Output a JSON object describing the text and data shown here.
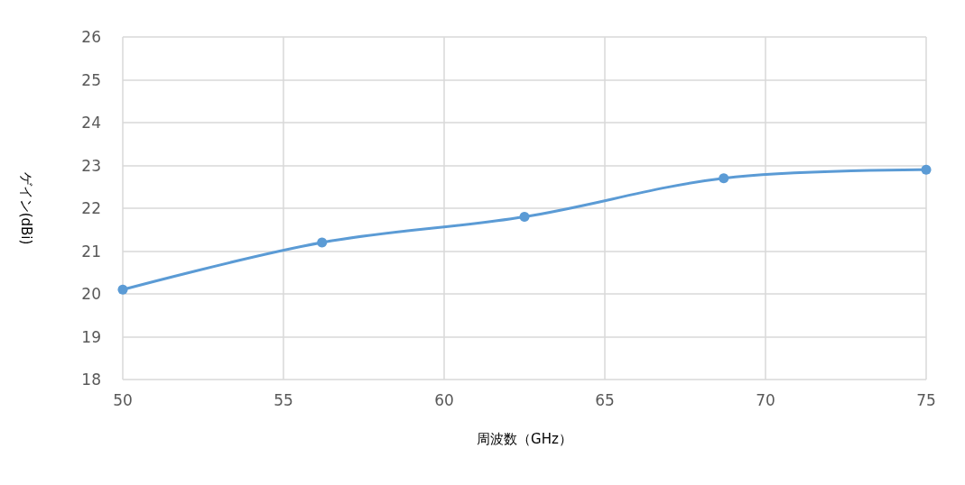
{
  "chart_data": {
    "type": "line",
    "xlabel": "周波数（GHz）",
    "ylabel": "ゲイン(dBi)",
    "x": [
      50,
      56.2,
      62.5,
      68.7,
      75
    ],
    "series": [
      {
        "color": "#5b9bd5",
        "values": [
          20.1,
          21.2,
          21.8,
          22.7,
          22.9
        ]
      }
    ],
    "xlim": [
      50,
      75
    ],
    "xticks": [
      50,
      55,
      60,
      65,
      70,
      75
    ],
    "ylim": [
      18,
      26
    ],
    "yticks": [
      18,
      19,
      20,
      21,
      22,
      23,
      24,
      25,
      26
    ],
    "grid": true,
    "marker": "circle",
    "line_style": "solid"
  }
}
